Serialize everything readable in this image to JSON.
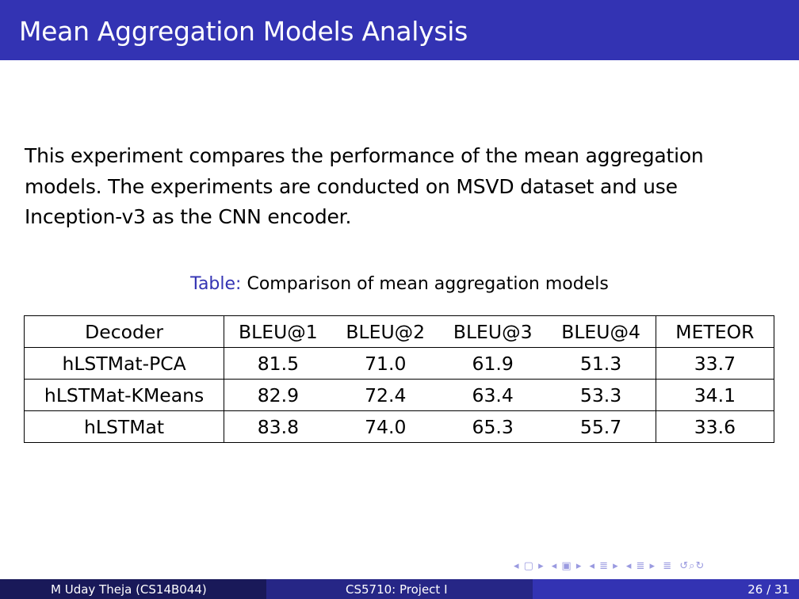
{
  "slide": {
    "title": "Mean Aggregation Models Analysis",
    "body_lines": [
      "This experiment compares the performance of the mean aggregation",
      "models. The experiments are conducted on MSVD dataset and use",
      "Inception-v3 as the CNN encoder."
    ],
    "caption_label": "Table:",
    "caption_text": "Comparison of mean aggregation models"
  },
  "table": {
    "headers": [
      "Decoder",
      "BLEU@1",
      "BLEU@2",
      "BLEU@3",
      "BLEU@4",
      "METEOR"
    ],
    "rows": [
      [
        "hLSTMat-PCA",
        "81.5",
        "71.0",
        "61.9",
        "51.3",
        "33.7"
      ],
      [
        "hLSTMat-KMeans",
        "82.9",
        "72.4",
        "63.4",
        "53.3",
        "34.1"
      ],
      [
        "hLSTMat",
        "83.8",
        "74.0",
        "65.3",
        "55.7",
        "33.6"
      ]
    ]
  },
  "footer": {
    "author": "M Uday Theja  (CS14B044)",
    "course": "CS5710: Project I",
    "page": "26 / 31"
  },
  "colors": {
    "title_bar": "#3333b3",
    "footer_left": "#191959",
    "footer_mid": "#262686",
    "footer_right": "#3333b3",
    "caption_label": "#3333b3"
  }
}
